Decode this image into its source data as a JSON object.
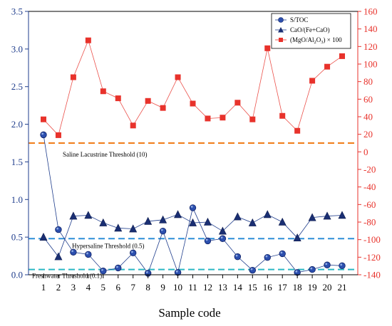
{
  "chart_data": {
    "type": "line",
    "xlabel": "Sample code",
    "categories": [
      "1",
      "2",
      "3",
      "4",
      "5",
      "6",
      "7",
      "8",
      "9",
      "10",
      "11",
      "12",
      "13",
      "14",
      "15",
      "16",
      "17",
      "18",
      "19",
      "20",
      "21"
    ],
    "y_left": {
      "ylim": [
        0,
        3.5
      ],
      "ticks": [
        "0.0",
        "0.5",
        "1.0",
        "1.5",
        "2.0",
        "2.5",
        "3.0",
        "3.5"
      ]
    },
    "y_right": {
      "ylim": [
        -140,
        160
      ],
      "ticks": [
        "-140",
        "-120",
        "-100",
        "-80",
        "-60",
        "-40",
        "-20",
        "0",
        "20",
        "40",
        "60",
        "80",
        "100",
        "120",
        "140",
        "160"
      ]
    },
    "series": [
      {
        "name": "S/TOC",
        "axis": "left",
        "marker": "circle",
        "color": "#1f3d8c",
        "values": [
          1.86,
          0.6,
          0.3,
          0.27,
          0.05,
          0.09,
          0.29,
          0.02,
          0.58,
          0.03,
          0.89,
          0.45,
          0.48,
          0.24,
          0.06,
          0.23,
          0.28,
          0.03,
          0.07,
          0.13,
          0.12
        ]
      },
      {
        "name": "CaO/(Fe+CaO)",
        "axis": "left",
        "marker": "triangle",
        "color": "#1f3d8c",
        "values": [
          0.5,
          0.24,
          0.78,
          0.79,
          0.69,
          0.62,
          0.61,
          0.71,
          0.73,
          0.8,
          0.69,
          0.7,
          0.58,
          0.77,
          0.69,
          0.8,
          0.7,
          0.49,
          0.76,
          0.78,
          0.79
        ]
      },
      {
        "name_parts": [
          "(MgO/Al",
          "2",
          "O",
          "3",
          ") × 100"
        ],
        "axis": "right",
        "marker": "square",
        "color": "#e8322b",
        "values": [
          37,
          19,
          85,
          127,
          69,
          61,
          30,
          58,
          50,
          85,
          55,
          38,
          39,
          56,
          37,
          118,
          41,
          24,
          81,
          97,
          109
        ]
      }
    ],
    "thresholds": [
      {
        "label": "Saline Lacustrine Threshold (10)",
        "axis": "right",
        "value": 10,
        "color": "#f07d1a"
      },
      {
        "label": "Hypersaline Threshold (0.5)",
        "axis": "left",
        "value": 0.48,
        "color": "#2e8fd8"
      },
      {
        "label": "Freshwater Threshold (0.1)",
        "axis": "left",
        "value": 0.07,
        "color": "#2ab7c4"
      }
    ],
    "legend_position": "top-right",
    "grid": false,
    "colors": {
      "left_axis": "#1f3d8c",
      "right_axis": "#e8322b"
    }
  }
}
